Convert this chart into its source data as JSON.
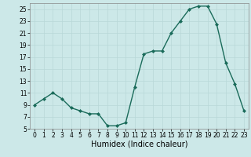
{
  "x": [
    0,
    1,
    2,
    3,
    4,
    5,
    6,
    7,
    8,
    9,
    10,
    11,
    12,
    13,
    14,
    15,
    16,
    17,
    18,
    19,
    20,
    21,
    22,
    23
  ],
  "y": [
    9,
    10,
    11,
    10,
    8.5,
    8,
    7.5,
    7.5,
    5.5,
    5.5,
    6,
    12,
    17.5,
    18,
    18,
    21,
    23,
    25,
    25.5,
    25.5,
    22.5,
    16,
    12.5,
    8
  ],
  "line_color": "#1a6b5a",
  "marker": "D",
  "marker_size": 2.0,
  "background_color": "#cce8e8",
  "grid_color": "#b8d8d8",
  "xlabel": "Humidex (Indice chaleur)",
  "ylim": [
    5,
    26
  ],
  "yticks": [
    5,
    7,
    9,
    11,
    13,
    15,
    17,
    19,
    21,
    23,
    25
  ],
  "xlim": [
    -0.5,
    23.5
  ],
  "xticks": [
    0,
    1,
    2,
    3,
    4,
    5,
    6,
    7,
    8,
    9,
    10,
    11,
    12,
    13,
    14,
    15,
    16,
    17,
    18,
    19,
    20,
    21,
    22,
    23
  ],
  "tick_fontsize": 5.5,
  "xlabel_fontsize": 7.0,
  "linewidth": 1.0
}
